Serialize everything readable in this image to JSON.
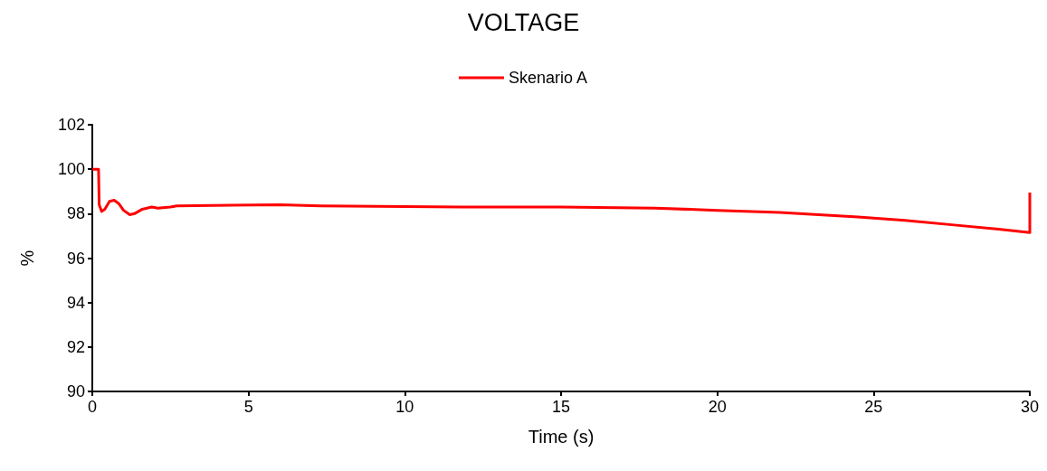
{
  "chart_data": {
    "type": "line",
    "title": "VOLTAGE",
    "xlabel": "Time (s)",
    "ylabel": "%",
    "series": [
      {
        "name": "Skenario A",
        "color": "#ff0000",
        "x": [
          0,
          0.2,
          0.22,
          0.3,
          0.4,
          0.55,
          0.7,
          0.85,
          1.0,
          1.2,
          1.35,
          1.6,
          1.9,
          2.1,
          2.5,
          2.7,
          6,
          7.3,
          12,
          15,
          18,
          20,
          22,
          24.5,
          26,
          27.5,
          29,
          30,
          30
        ],
        "values": [
          100,
          100,
          98.4,
          98.1,
          98.2,
          98.55,
          98.6,
          98.45,
          98.15,
          97.95,
          98.0,
          98.2,
          98.3,
          98.25,
          98.3,
          98.35,
          98.4,
          98.35,
          98.3,
          98.3,
          98.25,
          98.15,
          98.05,
          97.85,
          97.7,
          97.5,
          97.3,
          97.15,
          98.95
        ]
      }
    ],
    "xlim": [
      0,
      30
    ],
    "xticks": [
      0,
      5,
      10,
      15,
      20,
      25,
      30
    ],
    "ylim": [
      90,
      102
    ],
    "yticks": [
      90,
      92,
      94,
      96,
      98,
      100,
      102
    ],
    "grid": false,
    "legend": "top",
    "marker": "none",
    "line_style": "solid"
  }
}
